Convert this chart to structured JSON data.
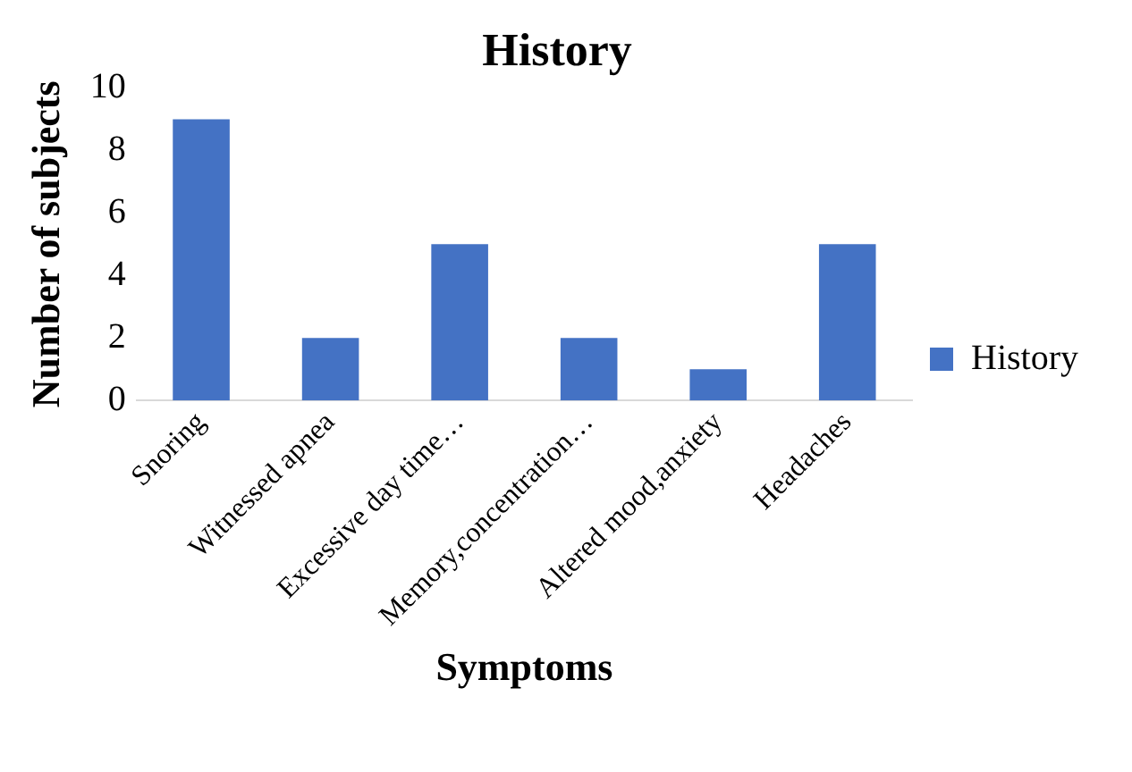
{
  "chart_data": {
    "type": "bar",
    "title": "History",
    "xlabel": "Symptoms",
    "ylabel": "Number of subjects",
    "categories": [
      "Snoring",
      "Witnessed apnea",
      "Excessive day time…",
      "Memory,concentration…",
      "Altered mood,anxiety",
      "Headaches"
    ],
    "series": [
      {
        "name": "History",
        "color": "#4472c4",
        "values": [
          9,
          2,
          5,
          2,
          1,
          5
        ]
      }
    ],
    "ylim": [
      0,
      10
    ],
    "yticks": [
      0,
      2,
      4,
      6,
      8,
      10
    ],
    "grid": false,
    "legend": "right"
  }
}
